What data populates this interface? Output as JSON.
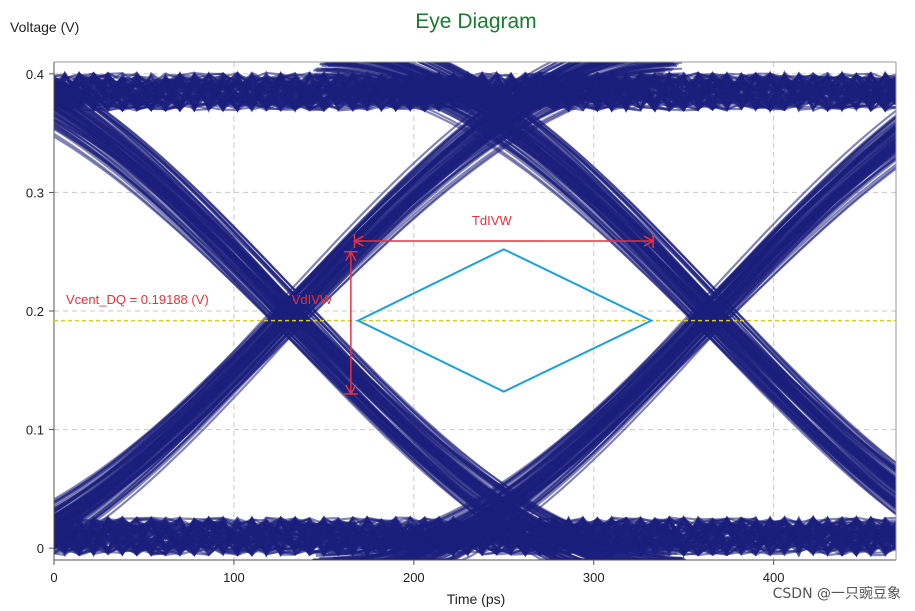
{
  "chart_data": {
    "type": "line",
    "title": "Eye Diagram",
    "xlabel": "Time (ps)",
    "ylabel": "Voltage (V)",
    "xlim": [
      0,
      468
    ],
    "ylim": [
      -0.01,
      0.41
    ],
    "x_ticks": [
      0,
      100,
      200,
      300,
      400
    ],
    "y_ticks": [
      0,
      0.1,
      0.2,
      0.3,
      0.4
    ],
    "x_tick_labels": [
      "0",
      "100",
      "200",
      "300",
      "400"
    ],
    "y_tick_labels": [
      "0",
      "0.1",
      "0.2",
      "0.3",
      "0.4"
    ],
    "grid": true,
    "unit_interval_ps": 234,
    "crossing_times_ps": [
      132,
      366
    ],
    "crossing_voltage_v": 0.19188,
    "high_level_v": 0.385,
    "low_level_v": 0.01,
    "vcent_label": "Vcent_DQ = 0.19188 (V)",
    "vdivw_label": "VdIVW",
    "tdivw_label": "TdIVW",
    "vdivw": {
      "time_ps": 165,
      "v_top": 0.25,
      "v_bottom": 0.13
    },
    "tdivw": {
      "voltage_v": 0.259,
      "t_start": 167,
      "t_end": 333
    },
    "eye_mask": [
      {
        "t": 169,
        "v": 0.19188
      },
      {
        "t": 250,
        "v": 0.252
      },
      {
        "t": 332,
        "v": 0.19188
      },
      {
        "t": 250,
        "v": 0.132
      }
    ],
    "colors": {
      "trace": "#1c1f7c",
      "mask": "#1aa0dc",
      "vcent_line": "#d8cc22",
      "annotation": "#e8313a",
      "title": "#1a7a2e",
      "grid": "#c8c8c8"
    }
  },
  "watermark": "CSDN @一只豌豆象"
}
